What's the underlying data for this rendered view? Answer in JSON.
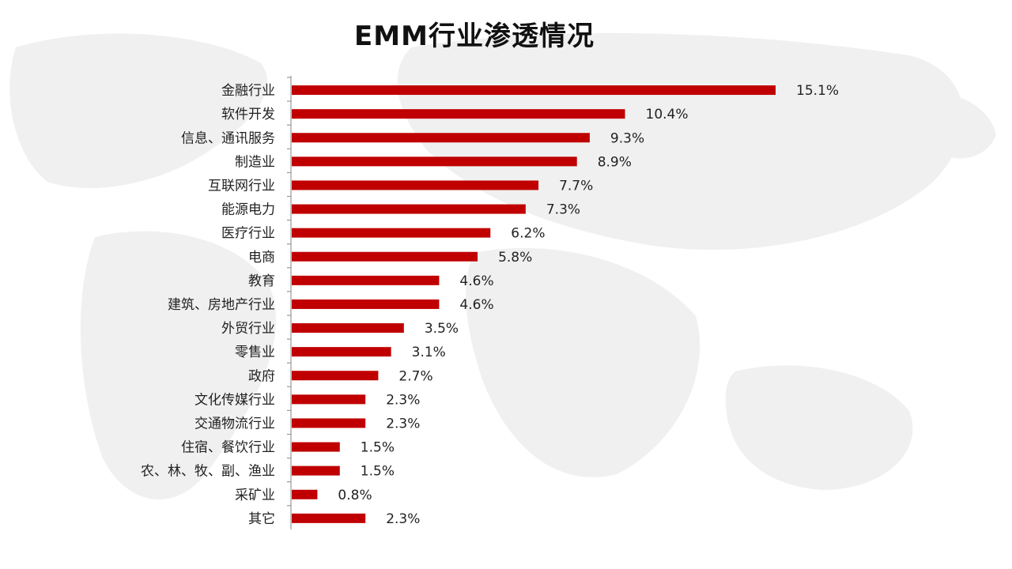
{
  "chart_data": {
    "type": "bar",
    "orientation": "horizontal",
    "title": "EMM行业渗透情况",
    "categories": [
      "金融行业",
      "软件开发",
      "信息、通讯服务",
      "制造业",
      "互联网行业",
      "能源电力",
      "医疗行业",
      "电商",
      "教育",
      "建筑、房地产行业",
      "外贸行业",
      "零售业",
      "政府",
      "文化传媒行业",
      "交通物流行业",
      "住宿、餐饮行业",
      "农、林、牧、副、渔业",
      "采矿业",
      "其它"
    ],
    "values": [
      15.1,
      10.4,
      9.3,
      8.9,
      7.7,
      7.3,
      6.2,
      5.8,
      4.6,
      4.6,
      3.5,
      3.1,
      2.7,
      2.3,
      2.3,
      1.5,
      1.5,
      0.8,
      2.3
    ],
    "value_labels": [
      "15.1%",
      "10.4%",
      "9.3%",
      "8.9%",
      "7.7%",
      "7.3%",
      "6.2%",
      "5.8%",
      "4.6%",
      "4.6%",
      "3.5%",
      "3.1%",
      "2.7%",
      "2.3%",
      "2.3%",
      "1.5%",
      "1.5%",
      "0.8%",
      "2.3%"
    ],
    "bar_color": "#c00000",
    "grid": false,
    "legend": "none"
  },
  "background": {
    "decoration": "world-map-watermark",
    "map_color": "#efefef"
  }
}
